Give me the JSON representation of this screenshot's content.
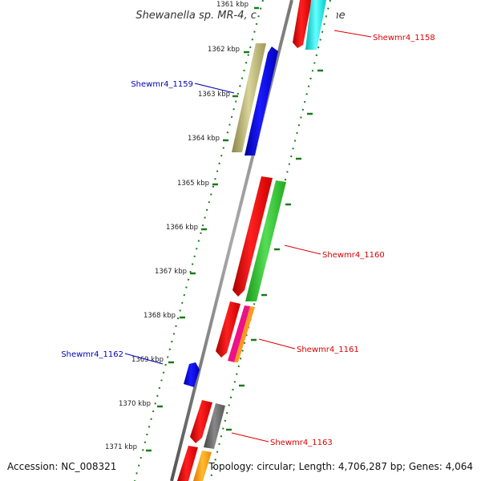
{
  "title": "Shewanella sp. MR-4, complete genome",
  "footer": {
    "accession": "Accession: NC_008321",
    "topology": "Topology: circular; Length: 4,706,287 bp; Genes: 4,064"
  },
  "ticks": [
    "1361 kbp",
    "1362 kbp",
    "1363 kbp",
    "1364 kbp",
    "1365 kbp",
    "1366 kbp",
    "1367 kbp",
    "1368 kbp",
    "1369 kbp",
    "1370 kbp",
    "1371 kbp"
  ],
  "gene_labels": [
    {
      "name": "Shewmr4_1158",
      "color": "#dd0000"
    },
    {
      "name": "Shewmr4_1159",
      "color": "#0000bb"
    },
    {
      "name": "Shewmr4_1160",
      "color": "#dd0000"
    },
    {
      "name": "Shewmr4_1161",
      "color": "#dd0000"
    },
    {
      "name": "Shewmr4_1162",
      "color": "#0000bb"
    },
    {
      "name": "Shewmr4_1163",
      "color": "#dd0000"
    }
  ],
  "colors": {
    "backbone": "#8c8c8c",
    "tick": "#1a7a1a",
    "red": "#ff0000",
    "blue": "#0000ff",
    "khaki": "#bdb76b",
    "green": "#33cc33",
    "cyan": "#00eeee",
    "grey": "#666666",
    "orange": "#ff9900",
    "magenta": "#ee1188"
  }
}
